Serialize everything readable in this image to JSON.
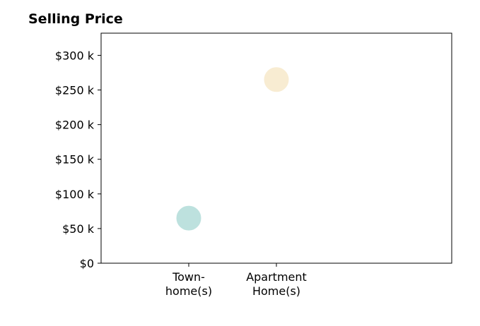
{
  "chart_data": {
    "type": "scatter",
    "title": "Selling Price",
    "xlabel": "",
    "ylabel": "",
    "categories": [
      [
        "Town-",
        "home(s)"
      ],
      [
        "Apartment",
        "Home(s)"
      ]
    ],
    "values": [
      65,
      265
    ],
    "colors": [
      "#a8d8d4",
      "#f6e6c4"
    ],
    "ylim": [
      0,
      332
    ],
    "yticks": [
      0,
      50,
      100,
      150,
      200,
      250,
      300
    ],
    "ytick_labels": [
      "$0",
      "$50 k",
      "$100 k",
      "$150 k",
      "$200 k",
      "$250 k",
      "$300 k"
    ],
    "grid": false
  }
}
